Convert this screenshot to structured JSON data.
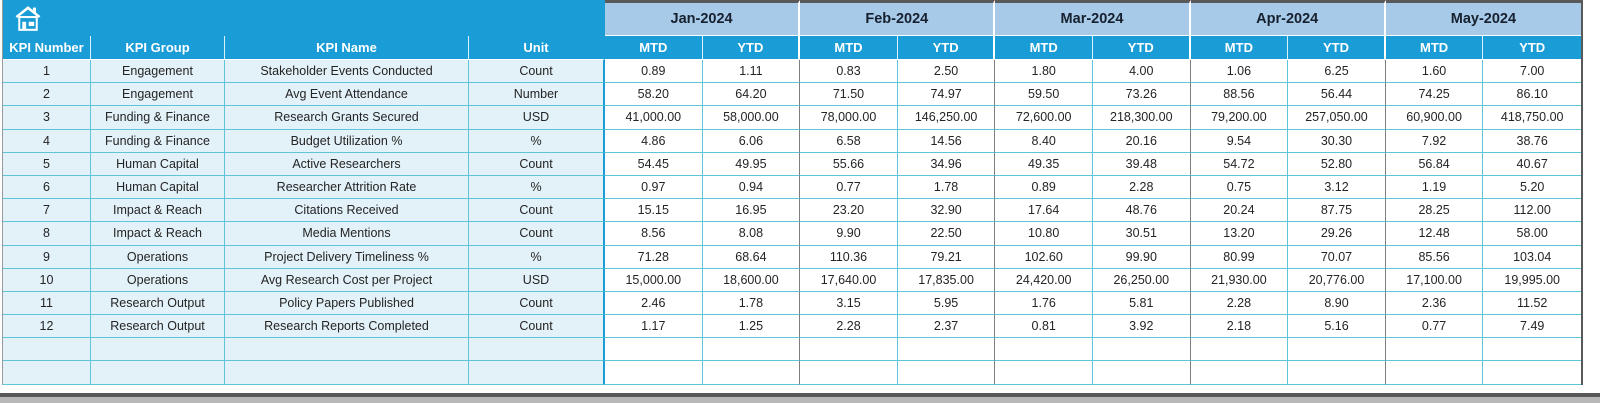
{
  "table": {
    "left_headers": [
      "KPI Number",
      "KPI Group",
      "KPI Name",
      "Unit"
    ],
    "months": [
      "Jan-2024",
      "Feb-2024",
      "Mar-2024",
      "Apr-2024",
      "May-2024"
    ],
    "sub_headers": [
      "MTD",
      "YTD"
    ],
    "rows": [
      {
        "number": "1",
        "group": "Engagement",
        "name": "Stakeholder Events Conducted",
        "unit": "Count",
        "values": [
          "0.89",
          "1.11",
          "0.83",
          "2.50",
          "1.80",
          "4.00",
          "1.06",
          "6.25",
          "1.60",
          "7.00"
        ]
      },
      {
        "number": "2",
        "group": "Engagement",
        "name": "Avg Event Attendance",
        "unit": "Number",
        "values": [
          "58.20",
          "64.20",
          "71.50",
          "74.97",
          "59.50",
          "73.26",
          "88.56",
          "56.44",
          "74.25",
          "86.10"
        ]
      },
      {
        "number": "3",
        "group": "Funding & Finance",
        "name": "Research Grants Secured",
        "unit": "USD",
        "values": [
          "41,000.00",
          "58,000.00",
          "78,000.00",
          "146,250.00",
          "72,600.00",
          "218,300.00",
          "79,200.00",
          "257,050.00",
          "60,900.00",
          "418,750.00"
        ]
      },
      {
        "number": "4",
        "group": "Funding & Finance",
        "name": "Budget Utilization %",
        "unit": "%",
        "values": [
          "4.86",
          "6.06",
          "6.58",
          "14.56",
          "8.40",
          "20.16",
          "9.54",
          "30.30",
          "7.92",
          "38.76"
        ]
      },
      {
        "number": "5",
        "group": "Human Capital",
        "name": "Active Researchers",
        "unit": "Count",
        "values": [
          "54.45",
          "49.95",
          "55.66",
          "34.96",
          "49.35",
          "39.48",
          "54.72",
          "52.80",
          "56.84",
          "40.67"
        ]
      },
      {
        "number": "6",
        "group": "Human Capital",
        "name": "Researcher Attrition Rate",
        "unit": "%",
        "values": [
          "0.97",
          "0.94",
          "0.77",
          "1.78",
          "0.89",
          "2.28",
          "0.75",
          "3.12",
          "1.19",
          "5.20"
        ]
      },
      {
        "number": "7",
        "group": "Impact & Reach",
        "name": "Citations Received",
        "unit": "Count",
        "values": [
          "15.15",
          "16.95",
          "23.20",
          "32.90",
          "17.64",
          "48.76",
          "20.24",
          "87.75",
          "28.25",
          "112.00"
        ]
      },
      {
        "number": "8",
        "group": "Impact & Reach",
        "name": "Media Mentions",
        "unit": "Count",
        "values": [
          "8.56",
          "8.08",
          "9.90",
          "22.50",
          "10.80",
          "30.51",
          "13.20",
          "29.26",
          "12.48",
          "58.00"
        ]
      },
      {
        "number": "9",
        "group": "Operations",
        "name": "Project Delivery Timeliness %",
        "unit": "%",
        "values": [
          "71.28",
          "68.64",
          "110.36",
          "79.21",
          "102.60",
          "99.90",
          "80.99",
          "70.07",
          "85.56",
          "103.04"
        ]
      },
      {
        "number": "10",
        "group": "Operations",
        "name": "Avg Research Cost per Project",
        "unit": "USD",
        "values": [
          "15,000.00",
          "18,600.00",
          "17,640.00",
          "17,835.00",
          "24,420.00",
          "26,250.00",
          "21,930.00",
          "20,776.00",
          "17,100.00",
          "19,995.00"
        ]
      },
      {
        "number": "11",
        "group": "Research Output",
        "name": "Policy Papers Published",
        "unit": "Count",
        "values": [
          "2.46",
          "1.78",
          "3.15",
          "5.95",
          "1.76",
          "5.81",
          "2.28",
          "8.90",
          "2.36",
          "11.52"
        ]
      },
      {
        "number": "12",
        "group": "Research Output",
        "name": "Research Reports Completed",
        "unit": "Count",
        "values": [
          "1.17",
          "1.25",
          "2.28",
          "2.37",
          "0.81",
          "3.92",
          "2.18",
          "5.16",
          "0.77",
          "7.49"
        ]
      }
    ],
    "empty_row_count": 2
  },
  "icons": {
    "home": "home-icon"
  },
  "colors": {
    "header_blue": "#1A9CD6",
    "month_band_blue": "#A7CAE8",
    "row_tint_blue": "#E3F1F8",
    "grid_cyan": "#5FC6D9",
    "edge_gray": "#595959"
  }
}
